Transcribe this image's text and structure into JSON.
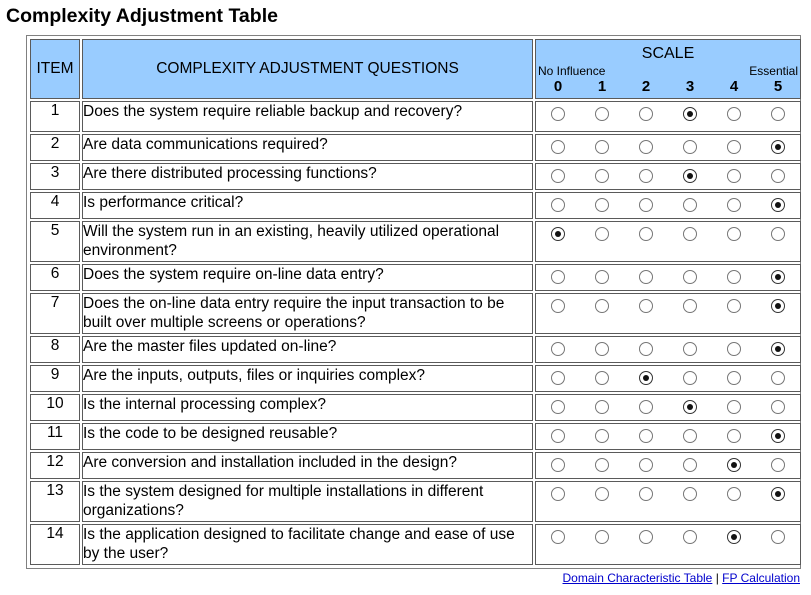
{
  "title": "Complexity Adjustment Table",
  "header": {
    "item": "ITEM",
    "questions": "COMPLEXITY ADJUSTMENT QUESTIONS",
    "scale": "SCALE",
    "no_influence": "No Influence",
    "essential": "Essential",
    "scale_values": [
      "0",
      "1",
      "2",
      "3",
      "4",
      "5"
    ]
  },
  "rows": [
    {
      "item": "1",
      "question": "Does the system require reliable backup and recovery?",
      "selected": 3
    },
    {
      "item": "2",
      "question": "Are data communications required?",
      "selected": 5
    },
    {
      "item": "3",
      "question": "Are there distributed processing functions?",
      "selected": 3
    },
    {
      "item": "4",
      "question": "Is performance critical?",
      "selected": 5
    },
    {
      "item": "5",
      "question": "Will the system run in an existing, heavily utilized operational environment?",
      "selected": 0
    },
    {
      "item": "6",
      "question": "Does the system require on-line data entry?",
      "selected": 5
    },
    {
      "item": "7",
      "question": "Does the on-line data entry require the input transaction to be built over multiple screens or operations?",
      "selected": 5
    },
    {
      "item": "8",
      "question": "Are the master files updated on-line?",
      "selected": 5
    },
    {
      "item": "9",
      "question": "Are the inputs, outputs, files or inquiries complex?",
      "selected": 2
    },
    {
      "item": "10",
      "question": "Is the internal processing complex?",
      "selected": 3
    },
    {
      "item": "11",
      "question": "Is the code to be designed reusable?",
      "selected": 5
    },
    {
      "item": "12",
      "question": "Are conversion and installation included in the design?",
      "selected": 4
    },
    {
      "item": "13",
      "question": "Is the system designed for multiple installations in different organizations?",
      "selected": 5
    },
    {
      "item": "14",
      "question": "Is the application designed to facilitate change and ease of use by the user?",
      "selected": 4
    }
  ],
  "links": {
    "domain_table": "Domain Characteristic Table",
    "separator": "|",
    "fp_calc": "FP Calculation"
  }
}
